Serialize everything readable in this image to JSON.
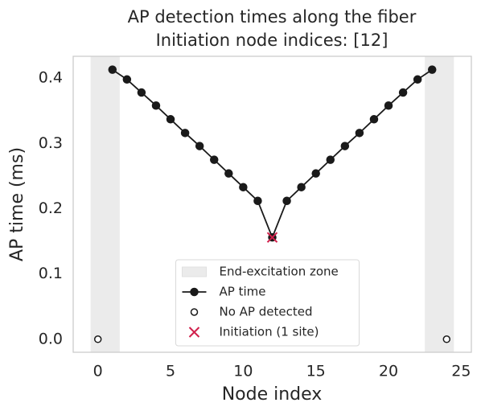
{
  "chart_data": {
    "type": "line",
    "title": "AP detection times along the fiber",
    "subtitle": "Initiation node indices: [12]",
    "x_label": "Node index",
    "y_label": "AP time (ms)",
    "xlim": [
      -1.7,
      25.7
    ],
    "ylim": [
      -0.02,
      0.4335
    ],
    "xticks": [
      0,
      5,
      10,
      15,
      20,
      25
    ],
    "yticks": [
      {
        "value": 0,
        "label": "0.0"
      },
      0.1,
      0.2,
      0.3,
      0.4
    ],
    "grid": false,
    "legend": "lower center",
    "zones": {
      "name": "End-excitation zone",
      "color": "#ebebeb",
      "spans": [
        [
          -0.5,
          1.5
        ],
        [
          22.5,
          24.5
        ]
      ]
    },
    "series": [
      {
        "name": "AP time",
        "color": "#1a1a1a",
        "marker": "filled",
        "line": true,
        "x": [
          1,
          2,
          3,
          4,
          5,
          6,
          7,
          8,
          9,
          10,
          11,
          12,
          13,
          14,
          15,
          16,
          17,
          18,
          19,
          20,
          21,
          22,
          23
        ],
        "values": [
          0.413,
          0.398,
          0.378,
          0.358,
          0.337,
          0.316,
          0.296,
          0.275,
          0.254,
          0.233,
          0.212,
          0.156,
          0.212,
          0.233,
          0.254,
          0.275,
          0.296,
          0.316,
          0.337,
          0.358,
          0.378,
          0.398,
          0.413
        ]
      },
      {
        "name": "No AP detected",
        "color": "#1a1a1a",
        "marker": "open",
        "line": false,
        "x": [
          0,
          24
        ],
        "values": [
          0,
          0
        ]
      },
      {
        "name": "Initiation (1 site)",
        "color": "#d1204b",
        "marker": "x",
        "line": false,
        "x": [
          12
        ],
        "values": [
          0.156
        ]
      }
    ]
  }
}
